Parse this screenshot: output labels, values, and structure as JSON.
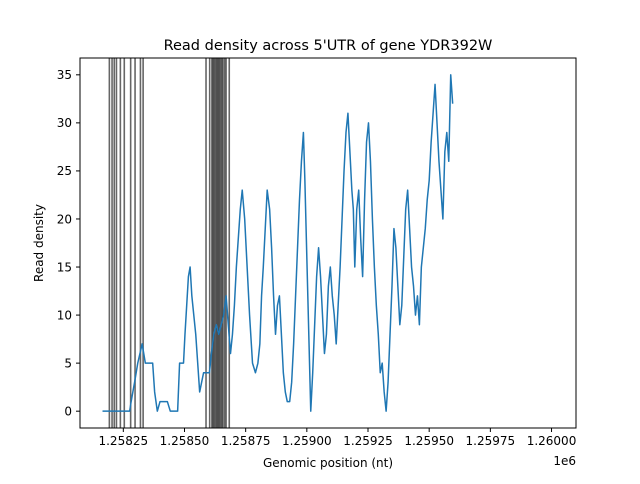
{
  "chart_data": {
    "type": "line",
    "title": "Read density across 5'UTR of gene YDR392W",
    "xlabel": "Genomic position (nt)",
    "ylabel": "Read density",
    "x_offset_label": "1e6",
    "xlim": [
      1.258073,
      1.2601
    ],
    "ylim": [
      -1.75,
      36.75
    ],
    "x_ticks": [
      {
        "value": 1.25825,
        "label": "1.25825"
      },
      {
        "value": 1.2585,
        "label": "1.25850"
      },
      {
        "value": 1.25875,
        "label": "1.25875"
      },
      {
        "value": 1.259,
        "label": "1.25900"
      },
      {
        "value": 1.25925,
        "label": "1.25925"
      },
      {
        "value": 1.2595,
        "label": "1.25950"
      },
      {
        "value": 1.25975,
        "label": "1.25975"
      },
      {
        "value": 1.26,
        "label": "1.26000"
      }
    ],
    "y_ticks": [
      {
        "value": 0,
        "label": "0"
      },
      {
        "value": 5,
        "label": "5"
      },
      {
        "value": 10,
        "label": "10"
      },
      {
        "value": 15,
        "label": "15"
      },
      {
        "value": 20,
        "label": "20"
      },
      {
        "value": 25,
        "label": "25"
      },
      {
        "value": 30,
        "label": "30"
      },
      {
        "value": 35,
        "label": "35"
      }
    ],
    "grid": false,
    "vertical_markers": {
      "color": "#000000",
      "x": [
        1.258193,
        1.258204,
        1.258213,
        1.258222,
        1.258238,
        1.258254,
        1.25828,
        1.258298,
        1.25832,
        1.258331,
        1.258588,
        1.258603,
        1.258612,
        1.258617,
        1.258622,
        1.258627,
        1.258632,
        1.258637,
        1.258642,
        1.258647,
        1.258652,
        1.258657,
        1.258664,
        1.25867,
        1.258683
      ]
    },
    "series": [
      {
        "color": "#1f77b4",
        "points": [
          [
            1.258165,
            0
          ],
          [
            1.258276,
            0
          ],
          [
            1.258282,
            1
          ],
          [
            1.258296,
            3
          ],
          [
            1.258309,
            5
          ],
          [
            1.258318,
            6
          ],
          [
            1.258327,
            7
          ],
          [
            1.25834,
            5
          ],
          [
            1.25837,
            5
          ],
          [
            1.258378,
            2
          ],
          [
            1.258389,
            0
          ],
          [
            1.2584,
            1
          ],
          [
            1.25843,
            1
          ],
          [
            1.258442,
            0
          ],
          [
            1.258472,
            0
          ],
          [
            1.25848,
            5
          ],
          [
            1.258496,
            5
          ],
          [
            1.258502,
            8
          ],
          [
            1.258509,
            11
          ],
          [
            1.258516,
            14
          ],
          [
            1.258523,
            15
          ],
          [
            1.25853,
            12
          ],
          [
            1.258538,
            10
          ],
          [
            1.258546,
            8
          ],
          [
            1.258554,
            5
          ],
          [
            1.258562,
            2
          ],
          [
            1.25857,
            3
          ],
          [
            1.258578,
            4
          ],
          [
            1.258602,
            4
          ],
          [
            1.25861,
            6
          ],
          [
            1.25862,
            8
          ],
          [
            1.25863,
            9
          ],
          [
            1.25864,
            8
          ],
          [
            1.25865,
            9
          ],
          [
            1.25866,
            10
          ],
          [
            1.25867,
            12
          ],
          [
            1.258679,
            9
          ],
          [
            1.258688,
            6
          ],
          [
            1.258696,
            8
          ],
          [
            1.258704,
            11
          ],
          [
            1.258712,
            15
          ],
          [
            1.25872,
            18
          ],
          [
            1.258728,
            21
          ],
          [
            1.258736,
            23
          ],
          [
            1.258746,
            20
          ],
          [
            1.258756,
            15
          ],
          [
            1.258766,
            10
          ],
          [
            1.258778,
            5
          ],
          [
            1.25879,
            4
          ],
          [
            1.2588,
            5
          ],
          [
            1.258808,
            7
          ],
          [
            1.258815,
            12
          ],
          [
            1.258822,
            15
          ],
          [
            1.25883,
            19
          ],
          [
            1.258838,
            23
          ],
          [
            1.258848,
            21
          ],
          [
            1.258856,
            17
          ],
          [
            1.258864,
            12
          ],
          [
            1.258872,
            8
          ],
          [
            1.25888,
            11
          ],
          [
            1.258888,
            12
          ],
          [
            1.258896,
            8
          ],
          [
            1.258904,
            4
          ],
          [
            1.258912,
            2
          ],
          [
            1.25892,
            1
          ],
          [
            1.25893,
            1
          ],
          [
            1.258938,
            3
          ],
          [
            1.258946,
            7
          ],
          [
            1.258954,
            12
          ],
          [
            1.258962,
            17
          ],
          [
            1.25897,
            22
          ],
          [
            1.258978,
            26
          ],
          [
            1.258986,
            29
          ],
          [
            1.258992,
            24
          ],
          [
            1.258998,
            18
          ],
          [
            1.259004,
            12
          ],
          [
            1.25901,
            6
          ],
          [
            1.259016,
            0
          ],
          [
            1.259024,
            4
          ],
          [
            1.259032,
            9
          ],
          [
            1.25904,
            14
          ],
          [
            1.259048,
            17
          ],
          [
            1.259056,
            14
          ],
          [
            1.259064,
            10
          ],
          [
            1.259072,
            6
          ],
          [
            1.25908,
            8
          ],
          [
            1.259088,
            13
          ],
          [
            1.259096,
            15
          ],
          [
            1.259104,
            12
          ],
          [
            1.259112,
            10
          ],
          [
            1.25912,
            7
          ],
          [
            1.259128,
            11
          ],
          [
            1.259136,
            15
          ],
          [
            1.259144,
            20
          ],
          [
            1.259152,
            25
          ],
          [
            1.25916,
            29
          ],
          [
            1.259168,
            31
          ],
          [
            1.259176,
            27
          ],
          [
            1.259184,
            23
          ],
          [
            1.25919,
            21
          ],
          [
            1.259196,
            15
          ],
          [
            1.259204,
            21
          ],
          [
            1.259212,
            23
          ],
          [
            1.25922,
            18
          ],
          [
            1.259228,
            14
          ],
          [
            1.259236,
            22
          ],
          [
            1.259244,
            28
          ],
          [
            1.259252,
            30
          ],
          [
            1.25926,
            26
          ],
          [
            1.259268,
            20
          ],
          [
            1.259276,
            15
          ],
          [
            1.259284,
            11
          ],
          [
            1.259292,
            8
          ],
          [
            1.2593,
            4
          ],
          [
            1.259308,
            5
          ],
          [
            1.259316,
            2
          ],
          [
            1.259324,
            0
          ],
          [
            1.259332,
            3
          ],
          [
            1.25934,
            8
          ],
          [
            1.259348,
            13
          ],
          [
            1.259356,
            19
          ],
          [
            1.259364,
            17
          ],
          [
            1.259372,
            13
          ],
          [
            1.25938,
            9
          ],
          [
            1.259388,
            11
          ],
          [
            1.259396,
            16
          ],
          [
            1.259404,
            21
          ],
          [
            1.259412,
            23
          ],
          [
            1.25942,
            19
          ],
          [
            1.259428,
            15
          ],
          [
            1.259436,
            13
          ],
          [
            1.259444,
            10
          ],
          [
            1.259452,
            12
          ],
          [
            1.25946,
            9
          ],
          [
            1.259468,
            15
          ],
          [
            1.259476,
            17
          ],
          [
            1.259484,
            19
          ],
          [
            1.259492,
            22
          ],
          [
            1.2595,
            24
          ],
          [
            1.259508,
            28
          ],
          [
            1.259516,
            31
          ],
          [
            1.259524,
            34
          ],
          [
            1.259532,
            30
          ],
          [
            1.25954,
            26
          ],
          [
            1.259548,
            23
          ],
          [
            1.259556,
            20
          ],
          [
            1.259564,
            27
          ],
          [
            1.259572,
            29
          ],
          [
            1.25958,
            26
          ],
          [
            1.259588,
            35
          ],
          [
            1.259596,
            32
          ]
        ]
      }
    ]
  }
}
